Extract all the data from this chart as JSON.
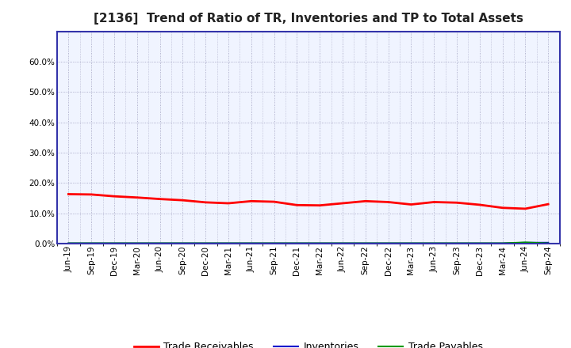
{
  "title": "[2136]  Trend of Ratio of TR, Inventories and TP to Total Assets",
  "background_color": "#ffffff",
  "plot_bg_color": "#f0f4ff",
  "grid_color": "#9999bb",
  "spine_color": "#3333aa",
  "ylim": [
    0.0,
    0.7
  ],
  "yticks": [
    0.0,
    0.1,
    0.2,
    0.3,
    0.4,
    0.5,
    0.6
  ],
  "x_labels": [
    "Jun-19",
    "Sep-19",
    "Dec-19",
    "Mar-20",
    "Jun-20",
    "Sep-20",
    "Dec-20",
    "Mar-21",
    "Jun-21",
    "Sep-21",
    "Dec-21",
    "Mar-22",
    "Jun-22",
    "Sep-22",
    "Dec-22",
    "Mar-23",
    "Jun-23",
    "Sep-23",
    "Dec-23",
    "Mar-24",
    "Jun-24",
    "Sep-24"
  ],
  "trade_receivables": [
    0.163,
    0.162,
    0.156,
    0.152,
    0.147,
    0.143,
    0.136,
    0.133,
    0.14,
    0.138,
    0.127,
    0.126,
    0.133,
    0.14,
    0.137,
    0.129,
    0.137,
    0.135,
    0.128,
    0.118,
    0.115,
    0.13
  ],
  "inventories": [
    0.001,
    0.001,
    0.001,
    0.001,
    0.001,
    0.001,
    0.001,
    0.001,
    0.001,
    0.001,
    0.001,
    0.001,
    0.001,
    0.001,
    0.001,
    0.001,
    0.001,
    0.001,
    0.001,
    0.001,
    0.003,
    0.003
  ],
  "trade_payables": [
    0.001,
    0.001,
    0.001,
    0.001,
    0.001,
    0.001,
    0.001,
    0.001,
    0.001,
    0.001,
    0.001,
    0.001,
    0.001,
    0.001,
    0.001,
    0.001,
    0.001,
    0.001,
    0.001,
    0.001,
    0.004,
    0.001
  ],
  "tr_color": "#ff0000",
  "inv_color": "#0000cc",
  "tp_color": "#009900",
  "legend_labels": [
    "Trade Receivables",
    "Inventories",
    "Trade Payables"
  ],
  "title_fontsize": 11,
  "tick_fontsize": 7.5,
  "legend_fontsize": 9
}
